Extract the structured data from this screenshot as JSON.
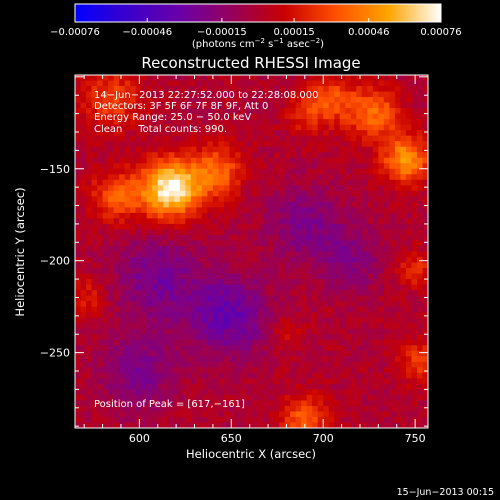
{
  "chart_data": {
    "type": "heatmap",
    "title": "Reconstructed RHESSI Image",
    "xlabel": "Heliocentric X (arcsec)",
    "ylabel": "Heliocentric Y (arcsec)",
    "xlim": [
      565,
      757
    ],
    "ylim": [
      -291,
      -99
    ],
    "x_ticks": [
      {
        "v": 600,
        "label": "600"
      },
      {
        "v": 650,
        "label": "650"
      },
      {
        "v": 700,
        "label": "700"
      },
      {
        "v": 750,
        "label": "750"
      }
    ],
    "y_ticks": [
      {
        "v": -150,
        "label": "−150"
      },
      {
        "v": -200,
        "label": "−200"
      },
      {
        "v": -250,
        "label": "−250"
      }
    ],
    "colorbar": {
      "range": [
        -0.00076,
        0.00076
      ],
      "ticks": [
        {
          "v": -0.00076,
          "label": "−0.00076"
        },
        {
          "v": -0.00046,
          "label": "−0.00046"
        },
        {
          "v": -0.00015,
          "label": "−0.00015"
        },
        {
          "v": 0.00015,
          "label": "0.00015"
        },
        {
          "v": 0.00046,
          "label": "0.00046"
        },
        {
          "v": 0.00076,
          "label": "0.00076"
        }
      ],
      "colors": [
        "#0000ff",
        "#3a00cc",
        "#6a00a8",
        "#96005a",
        "#c80000",
        "#ff5000",
        "#ffa500",
        "#ffffff"
      ]
    },
    "annotations": [
      "14−Jun−2013 22:27:52.000 to 22:28:08.000",
      "Detectors: 3F 5F 6F 7F 8F 9F, Att 0",
      "Energy Range: 25.0 − 50.0 keV",
      "Clean     Total counts: 990."
    ],
    "peak_label": "Position of Peak = [617,−161]",
    "peak": [
      617,
      -161
    ],
    "sources": [
      {
        "x": 617,
        "y": -161,
        "amp": 1.0,
        "sigma": 11
      },
      {
        "x": 642,
        "y": -152,
        "amp": 0.5,
        "sigma": 10
      },
      {
        "x": 588,
        "y": -165,
        "amp": 0.45,
        "sigma": 10
      },
      {
        "x": 745,
        "y": -145,
        "amp": 0.65,
        "sigma": 9
      },
      {
        "x": 728,
        "y": -120,
        "amp": 0.5,
        "sigma": 10
      },
      {
        "x": 705,
        "y": -112,
        "amp": 0.4,
        "sigma": 9
      },
      {
        "x": 585,
        "y": -112,
        "amp": 0.35,
        "sigma": 12
      },
      {
        "x": 690,
        "y": -120,
        "amp": 0.25,
        "sigma": 8
      },
      {
        "x": 750,
        "y": -205,
        "amp": 0.3,
        "sigma": 7
      },
      {
        "x": 752,
        "y": -255,
        "amp": 0.35,
        "sigma": 8
      },
      {
        "x": 690,
        "y": -286,
        "amp": 0.45,
        "sigma": 9
      },
      {
        "x": 680,
        "y": -240,
        "amp": 0.2,
        "sigma": 6
      },
      {
        "x": 570,
        "y": -220,
        "amp": 0.25,
        "sigma": 8
      },
      {
        "x": 610,
        "y": -210,
        "amp": -0.35,
        "sigma": 16
      },
      {
        "x": 648,
        "y": -230,
        "amp": -0.45,
        "sigma": 15
      },
      {
        "x": 690,
        "y": -180,
        "amp": -0.3,
        "sigma": 14
      },
      {
        "x": 715,
        "y": -200,
        "amp": -0.25,
        "sigma": 12
      },
      {
        "x": 600,
        "y": -260,
        "amp": -0.3,
        "sigma": 14
      }
    ]
  },
  "footer_date": "15−Jun−2013 00:15"
}
